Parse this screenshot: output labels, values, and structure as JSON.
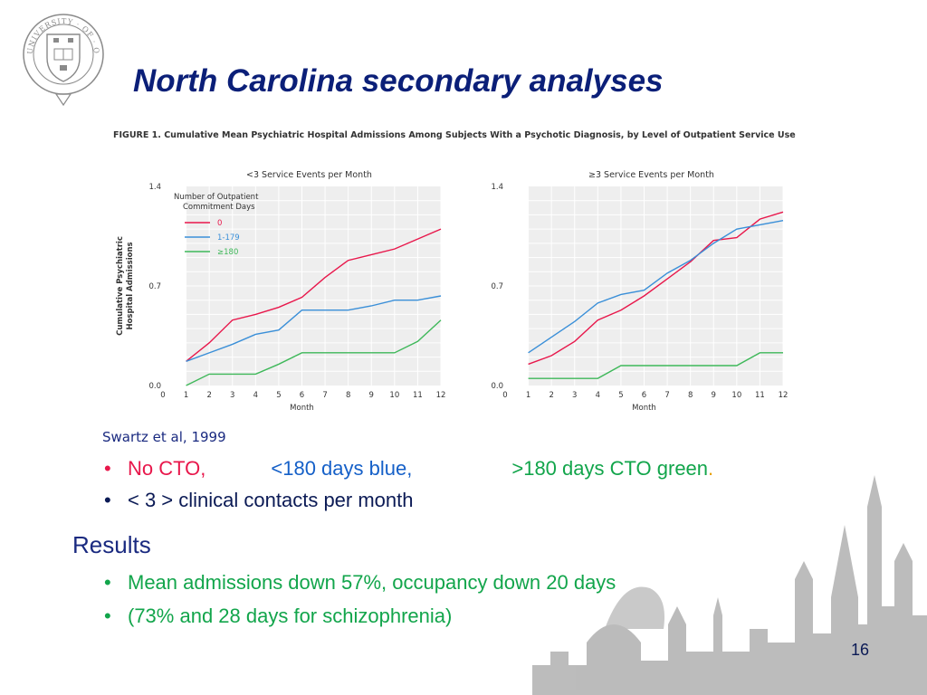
{
  "slide": {
    "title": "North Carolina secondary analyses",
    "page_number": "16",
    "logo_text": "UNIVERSITY · OF · OXFORD",
    "citation": "Swartz et al, 1999",
    "bullet1": {
      "part1": "No CTO,",
      "part2": "<180 days blue,",
      "part3": ">180 days CTO green",
      "part3_end": "."
    },
    "bullet2": "< 3 > clinical contacts per month",
    "results_heading": "Results",
    "bullet3": "Mean admissions down 57%, occupancy down 20 days",
    "bullet4": "(73% and 28 days for schizophrenia)",
    "colors": {
      "title": "#0b1f78",
      "red": "#e8174b",
      "blue": "#1560c8",
      "green": "#12a54b",
      "crest": "#8a8a8a",
      "skyline": "#9a9a9a"
    }
  },
  "figure": {
    "caption_label": "FIGURE 1.",
    "caption_text": "Cumulative Mean Psychiatric Hospital Admissions Among Subjects With a Psychotic Diagnosis, by Level of Outpatient Service Use"
  },
  "chart_data": [
    {
      "type": "line",
      "title": "<3 Service Events per Month",
      "xlabel": "Month",
      "ylabel": "Cumulative Psychiatric Hospital Admissions",
      "x": [
        0,
        1,
        2,
        3,
        4,
        5,
        6,
        7,
        8,
        9,
        10,
        11,
        12
      ],
      "yticks": [
        "0.0",
        "0.7",
        "1.4"
      ],
      "xlim": [
        0,
        12
      ],
      "ylim": [
        0,
        1.4
      ],
      "grid": true,
      "legend_title": "Number of Outpatient Commitment Days",
      "legend_position": "top-left",
      "series": [
        {
          "name": "0",
          "color": "#e8174b",
          "x": [
            1,
            2,
            3,
            4,
            5,
            6,
            7,
            8,
            9,
            10,
            11,
            12
          ],
          "values": [
            0.17,
            0.3,
            0.46,
            0.5,
            0.55,
            0.62,
            0.76,
            0.88,
            0.92,
            0.96,
            1.03,
            1.1
          ]
        },
        {
          "name": "1-179",
          "color": "#3a8fd8",
          "x": [
            1,
            2,
            3,
            4,
            5,
            6,
            7,
            8,
            9,
            10,
            11,
            12
          ],
          "values": [
            0.17,
            0.23,
            0.29,
            0.36,
            0.39,
            0.53,
            0.53,
            0.53,
            0.56,
            0.6,
            0.6,
            0.63
          ]
        },
        {
          "name": "≥180",
          "color": "#3fb85a",
          "x": [
            1,
            2,
            3,
            4,
            5,
            6,
            7,
            8,
            9,
            10,
            11,
            12
          ],
          "values": [
            0.0,
            0.08,
            0.08,
            0.08,
            0.15,
            0.23,
            0.23,
            0.23,
            0.23,
            0.23,
            0.31,
            0.46
          ]
        }
      ]
    },
    {
      "type": "line",
      "title": "≥3 Service Events per Month",
      "xlabel": "Month",
      "ylabel": "",
      "x": [
        0,
        1,
        2,
        3,
        4,
        5,
        6,
        7,
        8,
        9,
        10,
        11,
        12
      ],
      "yticks": [
        "0.0",
        "0.7",
        "1.4"
      ],
      "xlim": [
        0,
        12
      ],
      "ylim": [
        0,
        1.4
      ],
      "grid": true,
      "series": [
        {
          "name": "0",
          "color": "#e8174b",
          "x": [
            1,
            2,
            3,
            4,
            5,
            6,
            7,
            8,
            9,
            10,
            11,
            12
          ],
          "values": [
            0.15,
            0.21,
            0.31,
            0.46,
            0.53,
            0.63,
            0.75,
            0.87,
            1.02,
            1.04,
            1.17,
            1.22
          ]
        },
        {
          "name": "1-179",
          "color": "#3a8fd8",
          "x": [
            1,
            2,
            3,
            4,
            5,
            6,
            7,
            8,
            9,
            10,
            11,
            12
          ],
          "values": [
            0.23,
            0.34,
            0.45,
            0.58,
            0.64,
            0.67,
            0.79,
            0.88,
            1.0,
            1.1,
            1.13,
            1.16
          ]
        },
        {
          "name": "≥180",
          "color": "#3fb85a",
          "x": [
            1,
            2,
            3,
            4,
            5,
            6,
            7,
            8,
            9,
            10,
            11,
            12
          ],
          "values": [
            0.05,
            0.05,
            0.05,
            0.05,
            0.14,
            0.14,
            0.14,
            0.14,
            0.14,
            0.14,
            0.23,
            0.23
          ]
        }
      ]
    }
  ]
}
